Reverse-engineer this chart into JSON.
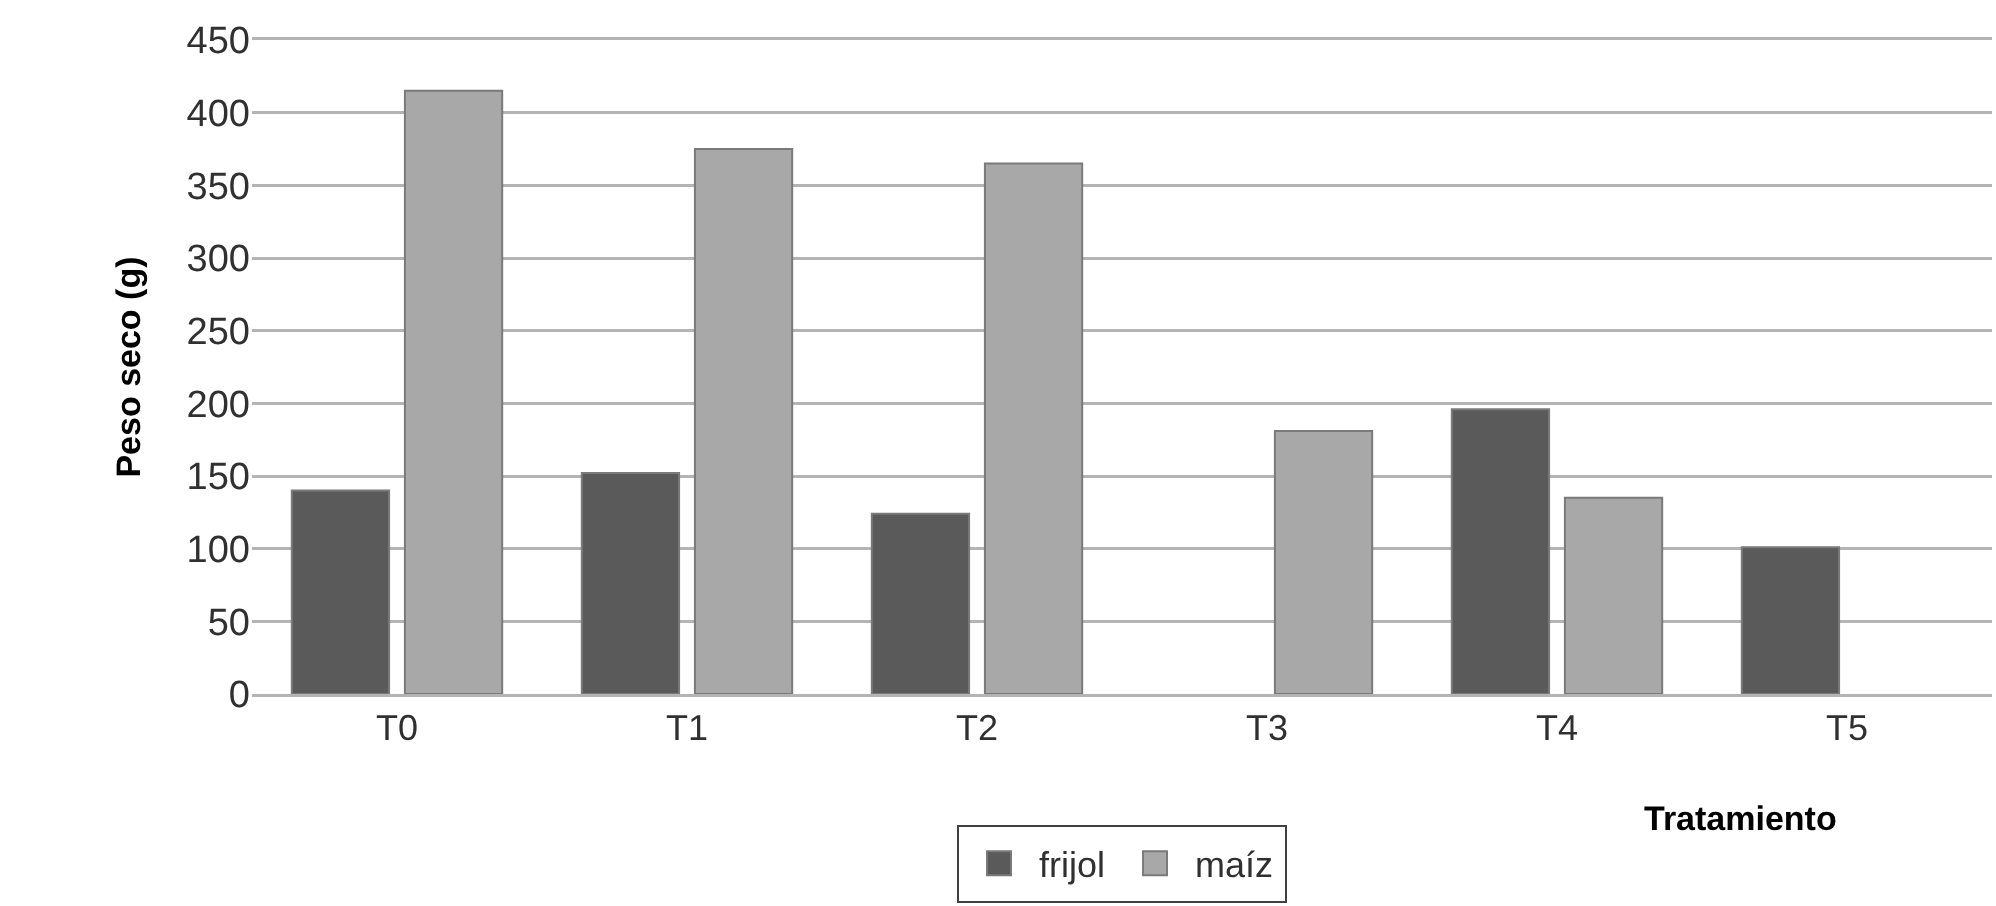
{
  "chart_data": {
    "type": "bar",
    "ylabel": "Peso seco (g)",
    "xlabel": "Tratamiento",
    "categories": [
      "T0",
      "T1",
      "T2",
      "T3",
      "T4",
      "T5"
    ],
    "series": [
      {
        "name": "frijol",
        "color": "#5a5a5a",
        "values": [
          140,
          152,
          124,
          null,
          196,
          101
        ]
      },
      {
        "name": "maíz",
        "color": "#a8a8a8",
        "values": [
          415,
          375,
          365,
          181,
          135,
          null
        ]
      }
    ],
    "ylim": [
      0,
      450
    ],
    "yticks": [
      0,
      50,
      100,
      150,
      200,
      250,
      300,
      350,
      400,
      450
    ],
    "grid": "y",
    "legend": "bottom"
  }
}
